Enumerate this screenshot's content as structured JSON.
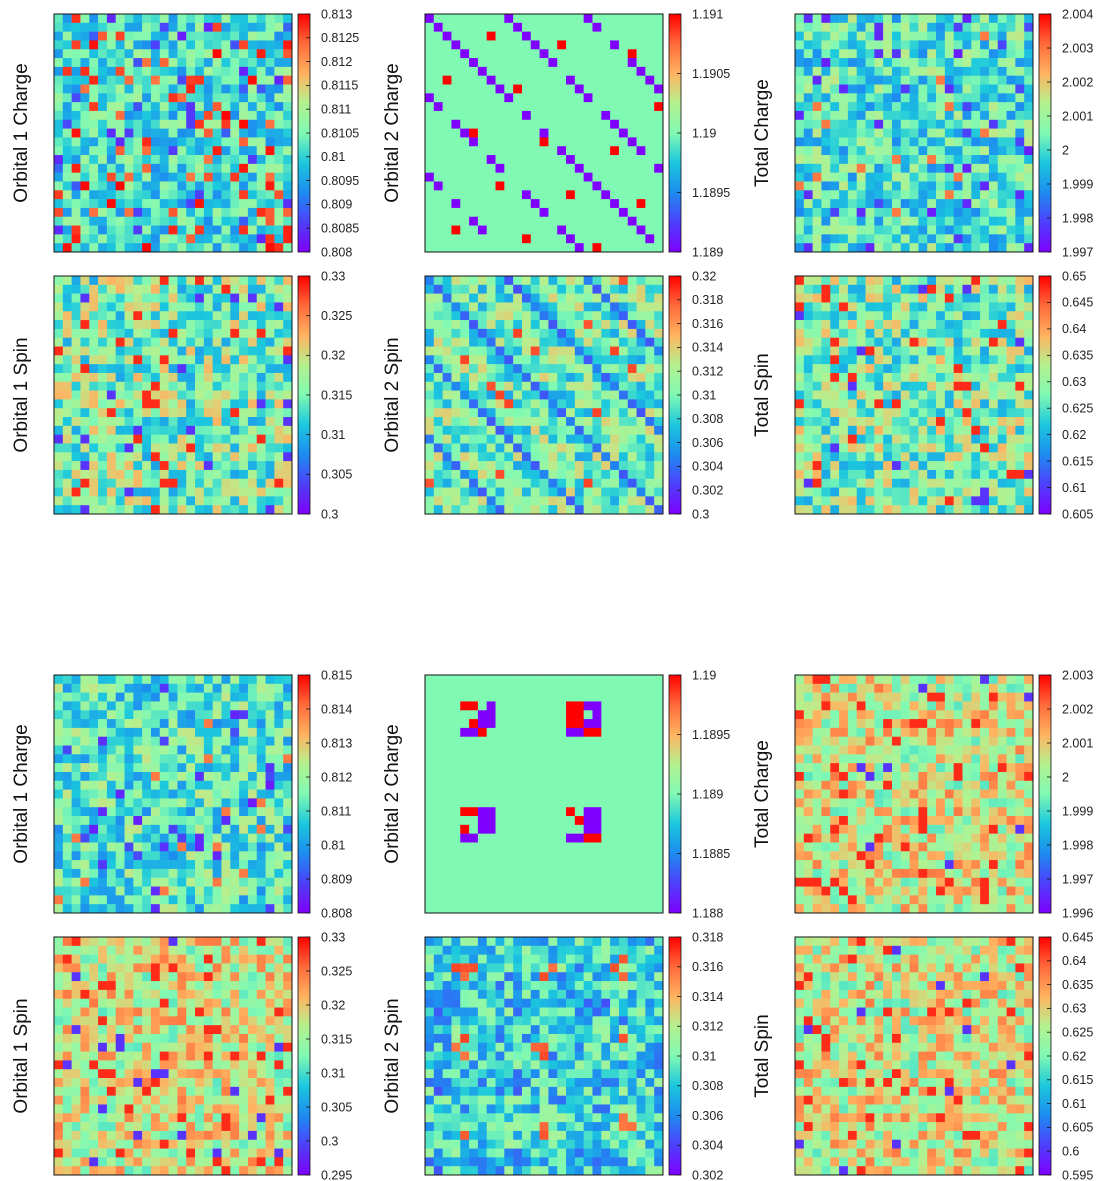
{
  "figure": {
    "grid_size": 27
  },
  "chart_data": [
    {
      "type": "heatmap",
      "ylabel": "Orbital 1 Charge",
      "colorbar": {
        "min": 0.808,
        "max": 0.813,
        "ticks": [
          "0.813",
          "0.8125",
          "0.812",
          "0.8115",
          "0.811",
          "0.8105",
          "0.81",
          "0.8095",
          "0.809",
          "0.8085",
          "0.808"
        ]
      },
      "pattern": "scatter-hot",
      "seed": 11
    },
    {
      "type": "heatmap",
      "ylabel": "Orbital 2 Charge",
      "colorbar": {
        "min": 1.189,
        "max": 1.191,
        "ticks": [
          "1.191",
          "1.1905",
          "1.19",
          "1.1895",
          "1.189"
        ]
      },
      "pattern": "diagonal",
      "seed": 12
    },
    {
      "type": "heatmap",
      "ylabel": "Total Charge",
      "colorbar": {
        "min": 1.997,
        "max": 2.004,
        "ticks": [
          "2.004",
          "2.003",
          "2.002",
          "2.001",
          "2",
          "1.999",
          "1.998",
          "1.997"
        ]
      },
      "pattern": "noise-cool",
      "seed": 13
    },
    {
      "type": "heatmap",
      "ylabel": "Orbital 1 Spin",
      "colorbar": {
        "min": 0.3,
        "max": 0.33,
        "ticks": [
          "0.33",
          "0.325",
          "0.32",
          "0.315",
          "0.31",
          "0.305",
          "0.3"
        ]
      },
      "pattern": "noise-mid",
      "seed": 14
    },
    {
      "type": "heatmap",
      "ylabel": "Orbital 2 Spin",
      "colorbar": {
        "min": 0.3,
        "max": 0.32,
        "ticks": [
          "0.32",
          "0.318",
          "0.316",
          "0.314",
          "0.312",
          "0.31",
          "0.308",
          "0.306",
          "0.304",
          "0.302",
          "0.3"
        ]
      },
      "pattern": "diag-spin",
      "seed": 15
    },
    {
      "type": "heatmap",
      "ylabel": "Total Spin",
      "colorbar": {
        "min": 0.605,
        "max": 0.65,
        "ticks": [
          "0.65",
          "0.645",
          "0.64",
          "0.635",
          "0.63",
          "0.625",
          "0.62",
          "0.615",
          "0.61",
          "0.605"
        ]
      },
      "pattern": "noise-mid",
      "seed": 16
    },
    {
      "type": "heatmap",
      "ylabel": "Orbital 1 Charge",
      "colorbar": {
        "min": 0.808,
        "max": 0.815,
        "ticks": [
          "0.815",
          "0.814",
          "0.813",
          "0.812",
          "0.811",
          "0.81",
          "0.809",
          "0.808"
        ]
      },
      "pattern": "noise-cool",
      "seed": 21
    },
    {
      "type": "heatmap",
      "ylabel": "Orbital 2 Charge",
      "colorbar": {
        "min": 1.188,
        "max": 1.19,
        "ticks": [
          "1.19",
          "1.1895",
          "1.189",
          "1.1885",
          "1.188"
        ]
      },
      "pattern": "blobs",
      "seed": 22
    },
    {
      "type": "heatmap",
      "ylabel": "Total Charge",
      "colorbar": {
        "min": 1.996,
        "max": 2.003,
        "ticks": [
          "2.003",
          "2.002",
          "2.001",
          "2",
          "1.999",
          "1.998",
          "1.997",
          "1.996"
        ]
      },
      "pattern": "noise-warm",
      "seed": 23
    },
    {
      "type": "heatmap",
      "ylabel": "Orbital 1 Spin",
      "colorbar": {
        "min": 0.295,
        "max": 0.33,
        "ticks": [
          "0.33",
          "0.325",
          "0.32",
          "0.315",
          "0.31",
          "0.305",
          "0.3",
          "0.295"
        ]
      },
      "pattern": "noise-warm",
      "seed": 24
    },
    {
      "type": "heatmap",
      "ylabel": "Orbital 2 Spin",
      "colorbar": {
        "min": 0.302,
        "max": 0.318,
        "ticks": [
          "0.318",
          "0.316",
          "0.314",
          "0.312",
          "0.31",
          "0.308",
          "0.306",
          "0.304",
          "0.302"
        ]
      },
      "pattern": "spin-blobs",
      "seed": 25
    },
    {
      "type": "heatmap",
      "ylabel": "Total Spin",
      "colorbar": {
        "min": 0.595,
        "max": 0.645,
        "ticks": [
          "0.645",
          "0.64",
          "0.635",
          "0.63",
          "0.625",
          "0.62",
          "0.615",
          "0.61",
          "0.605",
          "0.6",
          "0.595"
        ]
      },
      "pattern": "noise-warm",
      "seed": 26
    }
  ]
}
